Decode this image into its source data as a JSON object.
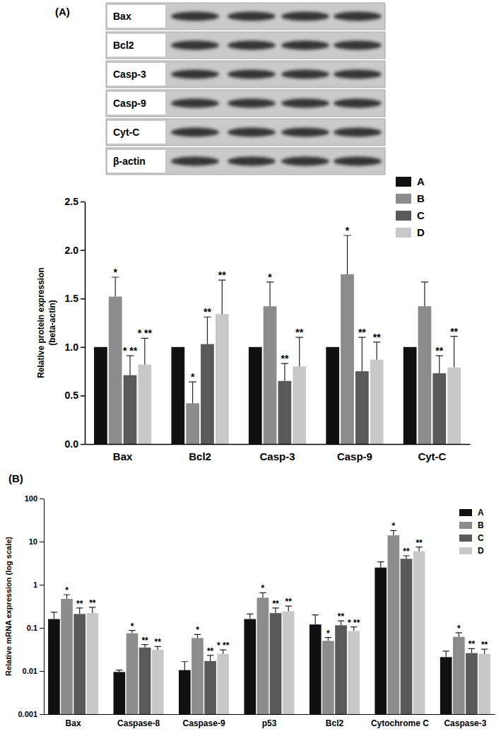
{
  "panel_labels": [
    "(A)",
    "(B)"
  ],
  "blot": {
    "rows": [
      "Bax",
      "Bcl2",
      "Casp-3",
      "Casp-9",
      "Cyt-C",
      "β-actin"
    ]
  },
  "chart_data": [
    {
      "type": "bar",
      "y_label": [
        "Relative protein expression",
        "(beta-actin)"
      ],
      "categories": [
        "Bax",
        "Bcl2",
        "Casp-3",
        "Casp-9",
        "Cyt-C"
      ],
      "series": [
        {
          "name": "A",
          "color": "#111111",
          "values": [
            1,
            1,
            1,
            1,
            1
          ],
          "significance": [
            null,
            null,
            null,
            null,
            null
          ]
        },
        {
          "name": "B",
          "color": "#8c8c8c",
          "values": [
            1.52,
            0.42,
            1.42,
            1.75,
            1.42
          ],
          "errors": [
            0.2,
            0.22,
            0.25,
            0.4,
            0.25
          ],
          "significance": [
            "*",
            "*",
            "*",
            "*",
            null
          ]
        },
        {
          "name": "C",
          "color": "#595959",
          "values": [
            0.71,
            1.03,
            0.65,
            0.75,
            0.73
          ],
          "errors": [
            0.2,
            0.28,
            0.18,
            0.35,
            0.18
          ],
          "significance": [
            "* **",
            "**",
            "**",
            "**",
            "**"
          ]
        },
        {
          "name": "D",
          "color": "#c8c8c8",
          "values": [
            0.82,
            1.34,
            0.8,
            0.87,
            0.79
          ],
          "errors": [
            0.27,
            0.35,
            0.3,
            0.18,
            0.32
          ],
          "significance": [
            "* **",
            "**",
            "**",
            "**",
            "**"
          ]
        }
      ],
      "ylim": [
        0,
        2.5
      ],
      "yticks": [
        {
          "value": 0,
          "label": "0.0"
        },
        0.5,
        {
          "value": 1,
          "label": "1.0"
        },
        1.5,
        {
          "value": 2,
          "label": "2.0"
        },
        2.5
      ],
      "grid": false,
      "legend": "top-right"
    },
    {
      "type": "bar",
      "y_label": "Relative mRNA expression  (log scale)",
      "categories": [
        "Bax",
        "Caspase-8",
        "Caspase-9",
        "p53",
        "Bcl2",
        "Cytochrome C",
        "Caspase-3"
      ],
      "series": [
        {
          "name": "A",
          "color": "#111111",
          "values": [
            0.16,
            0.0095,
            0.0105,
            0.16,
            0.12,
            2.5,
            0.021
          ],
          "errors": [
            0.07,
            0.001,
            0.006,
            0.05,
            0.08,
            0.9,
            0.008
          ],
          "significance": [
            null,
            null,
            null,
            null,
            null,
            null,
            null
          ]
        },
        {
          "name": "B",
          "color": "#8c8c8c",
          "values": [
            0.47,
            0.075,
            0.058,
            0.5,
            0.05,
            14,
            0.062
          ],
          "errors": [
            0.12,
            0.012,
            0.012,
            0.15,
            0.01,
            4,
            0.015
          ],
          "significance": [
            "*",
            "*",
            "*",
            "*",
            "*",
            "*",
            "*"
          ]
        },
        {
          "name": "C",
          "color": "#595959",
          "values": [
            0.21,
            0.035,
            0.017,
            0.22,
            0.115,
            4.0,
            0.026
          ],
          "errors": [
            0.08,
            0.006,
            0.006,
            0.07,
            0.03,
            0.7,
            0.007
          ],
          "significance": [
            "**",
            "**",
            "**",
            "**",
            "**",
            "**",
            "**"
          ]
        },
        {
          "name": "D",
          "color": "#c8c8c8",
          "values": [
            0.22,
            0.031,
            0.025,
            0.24,
            0.085,
            6.0,
            0.025
          ],
          "errors": [
            0.08,
            0.006,
            0.006,
            0.08,
            0.02,
            1.5,
            0.007
          ],
          "significance": [
            "**",
            "**",
            "* **",
            "**",
            "* **",
            "**",
            "**"
          ]
        }
      ],
      "ylim": [
        0.001,
        100
      ],
      "yticks": [
        0.001,
        0.01,
        0.1,
        1,
        10,
        100
      ],
      "log": "y",
      "grid": false,
      "legend": "top-right"
    }
  ]
}
